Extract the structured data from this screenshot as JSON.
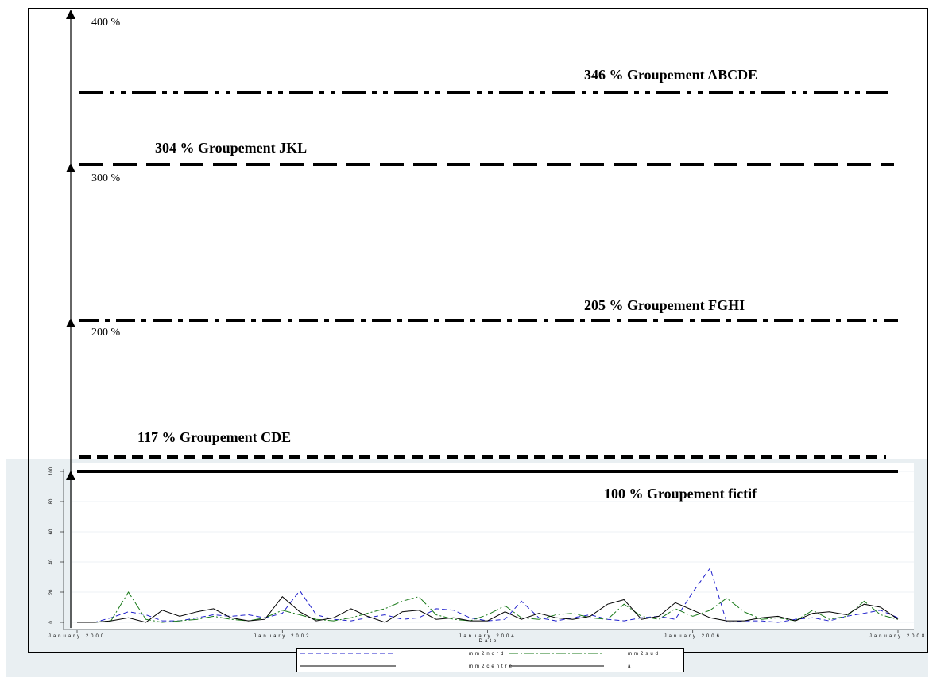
{
  "scale": {
    "labels": [
      "400 %",
      "300 %",
      "200 %"
    ]
  },
  "levels": [
    {
      "label": "346 % Groupement ABCDE"
    },
    {
      "label": "304 % Groupement JKL"
    },
    {
      "label": "205 % Groupement FGHI"
    },
    {
      "label": "117 % Groupement CDE"
    },
    {
      "label": "100 % Groupement fictif"
    }
  ],
  "chart_data": {
    "type": "line",
    "x_label": "Date",
    "x": [
      2000,
      2000.17,
      2000.33,
      2000.5,
      2000.67,
      2000.83,
      2001,
      2001.17,
      2001.33,
      2001.5,
      2001.67,
      2001.83,
      2002,
      2002.17,
      2002.33,
      2002.5,
      2002.67,
      2002.83,
      2003,
      2003.17,
      2003.33,
      2003.5,
      2003.67,
      2003.83,
      2004,
      2004.17,
      2004.33,
      2004.5,
      2004.67,
      2004.83,
      2005,
      2005.17,
      2005.33,
      2005.5,
      2005.67,
      2005.83,
      2006,
      2006.17,
      2006.33,
      2006.5,
      2006.67,
      2006.83,
      2007,
      2007.17,
      2007.33,
      2007.5,
      2007.67,
      2007.83,
      2008
    ],
    "xlim": [
      2000,
      2008
    ],
    "xticks": [
      {
        "value": 2000,
        "label": "January 2000"
      },
      {
        "value": 2002,
        "label": "January 2002"
      },
      {
        "value": 2004,
        "label": "January 2004"
      },
      {
        "value": 2006,
        "label": "January 2006"
      },
      {
        "value": 2008,
        "label": "January 2008"
      }
    ],
    "ylim": [
      0,
      100
    ],
    "yticks": [
      0,
      20,
      40,
      60,
      80,
      100
    ],
    "grid": true,
    "series": [
      {
        "name": "mm2nord",
        "color": "#1f1fcc",
        "values": [
          0,
          0,
          3,
          7,
          5,
          1,
          1,
          3,
          5,
          4,
          5,
          3,
          6,
          21,
          5,
          2,
          1,
          3,
          5,
          2,
          3,
          9,
          8,
          3,
          1,
          2,
          14,
          3,
          1,
          3,
          5,
          2,
          1,
          3,
          4,
          2,
          20,
          36,
          0,
          1,
          1,
          0,
          2,
          3,
          1,
          4,
          6,
          8,
          3
        ]
      },
      {
        "name": "mm2sud",
        "color": "#1a7a1a",
        "values": [
          0,
          0,
          1,
          20,
          2,
          0,
          1,
          2,
          4,
          2,
          1,
          3,
          8,
          5,
          2,
          1,
          3,
          6,
          9,
          14,
          17,
          5,
          2,
          1,
          5,
          11,
          3,
          2,
          5,
          6,
          3,
          2,
          12,
          4,
          2,
          9,
          4,
          8,
          16,
          7,
          2,
          3,
          1,
          8,
          2,
          4,
          14,
          5,
          2
        ]
      },
      {
        "name": "mm2centre",
        "color": "#000000",
        "values": [
          0,
          0,
          1,
          3,
          0,
          8,
          4,
          7,
          9,
          3,
          1,
          2,
          17,
          7,
          1,
          3,
          9,
          4,
          0,
          7,
          8,
          2,
          3,
          1,
          1,
          7,
          2,
          6,
          3,
          2,
          4,
          12,
          15,
          2,
          4,
          13,
          8,
          3,
          1,
          1,
          3,
          4,
          1,
          6,
          7,
          5,
          12,
          10,
          2
        ]
      },
      {
        "name": "a",
        "color": "#000000",
        "values": [
          100,
          100,
          100,
          100,
          100,
          100,
          100,
          100,
          100,
          100,
          100,
          100,
          100,
          100,
          100,
          100,
          100,
          100,
          100,
          100,
          100,
          100,
          100,
          100,
          100,
          100,
          100,
          100,
          100,
          100,
          100,
          100,
          100,
          100,
          100,
          100,
          100,
          100,
          100,
          100,
          100,
          100,
          100,
          100,
          100,
          100,
          100,
          100,
          100
        ]
      }
    ]
  }
}
